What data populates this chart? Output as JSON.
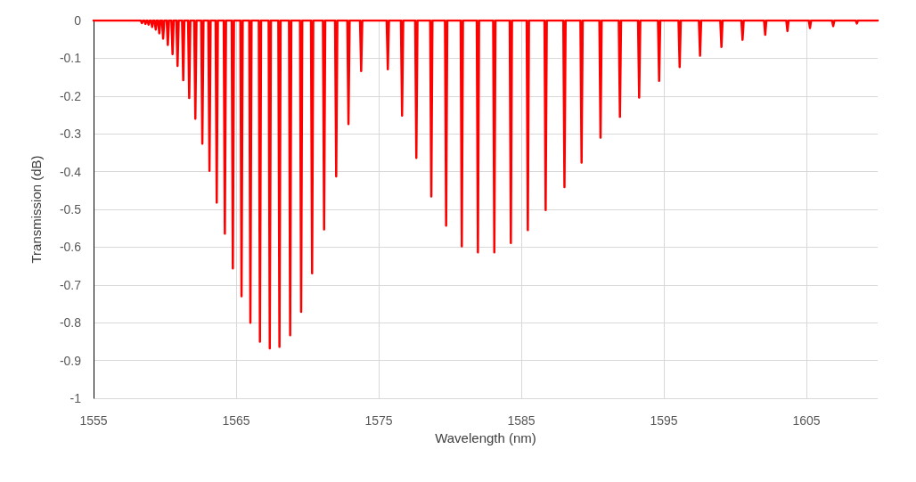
{
  "chart_data": {
    "type": "line",
    "xlabel": "Wavelength (nm)",
    "ylabel": "Transmission (dB)",
    "xlim": [
      1555,
      1610
    ],
    "xticks": [
      1555,
      1565,
      1575,
      1585,
      1595,
      1605
    ],
    "ylim": [
      -1,
      0
    ],
    "yticks": [
      -1,
      -0.9,
      -0.8,
      -0.7,
      -0.6,
      -0.5,
      -0.4,
      -0.3,
      -0.2,
      -0.1,
      0
    ],
    "grid": true,
    "line_style": "solid",
    "series": [
      {
        "color": "#ff0000",
        "x": [
          1555,
          1558.31,
          1558.39,
          1558.47,
          1558.56,
          1558.64,
          1558.72,
          1558.78,
          1558.86,
          1558.94,
          1559.03,
          1559.11,
          1559.19,
          1559.28,
          1559.36,
          1559.44,
          1559.53,
          1559.61,
          1559.69,
          1559.8,
          1559.88,
          1559.96,
          1560.13,
          1560.21,
          1560.29,
          1560.46,
          1560.54,
          1560.62,
          1560.81,
          1560.89,
          1560.97,
          1561.21,
          1561.29,
          1561.37,
          1561.63,
          1561.71,
          1561.79,
          1562.06,
          1562.14,
          1562.22,
          1562.55,
          1562.63,
          1562.71,
          1563.05,
          1563.13,
          1563.21,
          1563.56,
          1563.64,
          1563.72,
          1564.13,
          1564.21,
          1564.29,
          1564.69,
          1564.77,
          1564.85,
          1565.3,
          1565.38,
          1565.46,
          1565.92,
          1566.0,
          1566.08,
          1566.59,
          1566.67,
          1566.75,
          1567.28,
          1567.36,
          1567.44,
          1567.96,
          1568.04,
          1568.12,
          1568.71,
          1568.79,
          1568.87,
          1569.48,
          1569.56,
          1569.64,
          1570.25,
          1570.33,
          1570.41,
          1571.09,
          1571.17,
          1571.25,
          1571.94,
          1572.02,
          1572.1,
          1572.8,
          1572.88,
          1572.96,
          1573.69,
          1573.77,
          1573.85,
          1575.56,
          1575.64,
          1575.72,
          1576.56,
          1576.64,
          1576.72,
          1577.56,
          1577.64,
          1577.72,
          1578.61,
          1578.69,
          1578.77,
          1579.65,
          1579.73,
          1579.81,
          1580.75,
          1580.83,
          1580.91,
          1581.88,
          1581.96,
          1582.04,
          1583.03,
          1583.11,
          1583.19,
          1584.19,
          1584.27,
          1584.35,
          1585.38,
          1585.46,
          1585.54,
          1586.63,
          1586.71,
          1586.79,
          1587.95,
          1588.03,
          1588.11,
          1589.15,
          1589.23,
          1589.31,
          1590.48,
          1590.56,
          1590.64,
          1591.84,
          1591.92,
          1592.0,
          1593.19,
          1593.27,
          1593.35,
          1594.59,
          1594.67,
          1594.75,
          1596.03,
          1596.11,
          1596.19,
          1597.46,
          1597.54,
          1597.62,
          1598.96,
          1599.04,
          1599.12,
          1600.44,
          1600.52,
          1600.6,
          1602.03,
          1602.11,
          1602.19,
          1603.59,
          1603.67,
          1603.75,
          1605.17,
          1605.25,
          1605.33,
          1606.8,
          1606.88,
          1606.96,
          1608.46,
          1608.54,
          1608.62,
          1610
        ],
        "values": [
          0,
          0,
          -0.007,
          0,
          0,
          -0.009,
          0,
          0,
          -0.011,
          0,
          0,
          -0.017,
          0,
          0,
          -0.024,
          0,
          0,
          -0.034,
          0,
          0,
          -0.048,
          0,
          0,
          -0.065,
          0,
          0,
          -0.089,
          0,
          0,
          -0.12,
          0,
          0,
          -0.158,
          0,
          0,
          -0.205,
          0,
          0,
          -0.26,
          0,
          0,
          -0.326,
          0,
          0,
          -0.398,
          0,
          0,
          -0.482,
          0,
          0,
          -0.564,
          0,
          0,
          -0.656,
          0,
          0,
          -0.73,
          0,
          0,
          -0.8,
          0,
          0,
          -0.85,
          0,
          0,
          -0.868,
          0,
          0,
          -0.864,
          0,
          0,
          -0.833,
          0,
          0,
          -0.771,
          0,
          0,
          -0.669,
          0,
          0,
          -0.553,
          0,
          0,
          -0.413,
          0,
          0,
          -0.274,
          0,
          0,
          -0.134,
          0,
          0,
          -0.129,
          0,
          0,
          -0.252,
          0,
          0,
          -0.364,
          0,
          0,
          -0.466,
          0,
          0,
          -0.543,
          0,
          0,
          -0.598,
          0,
          0,
          -0.614,
          0,
          0,
          -0.614,
          0,
          0,
          -0.589,
          0,
          0,
          -0.555,
          0,
          0,
          -0.502,
          0,
          0,
          -0.441,
          0,
          0,
          -0.376,
          0,
          0,
          -0.31,
          0,
          0,
          -0.255,
          0,
          0,
          -0.204,
          0,
          0,
          -0.16,
          0,
          0,
          -0.123,
          0,
          0,
          -0.093,
          0,
          0,
          -0.07,
          0,
          0,
          -0.051,
          0,
          0,
          -0.038,
          0,
          0,
          -0.028,
          0,
          0,
          -0.02,
          0,
          0,
          -0.015,
          0,
          0,
          -0.008,
          0,
          0
        ]
      }
    ]
  }
}
